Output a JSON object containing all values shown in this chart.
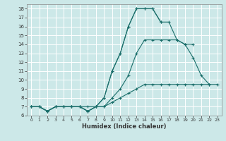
{
  "xlabel": "Humidex (Indice chaleur)",
  "bg_color": "#cce8e8",
  "grid_color": "#b0d0d0",
  "line_color": "#1a6e6a",
  "xlim": [
    -0.5,
    23.5
  ],
  "ylim": [
    6,
    18.5
  ],
  "xticks": [
    0,
    1,
    2,
    3,
    4,
    5,
    6,
    7,
    8,
    9,
    10,
    11,
    12,
    13,
    14,
    15,
    16,
    17,
    18,
    19,
    20,
    21,
    22,
    23
  ],
  "yticks": [
    6,
    7,
    8,
    9,
    10,
    11,
    12,
    13,
    14,
    15,
    16,
    17,
    18
  ],
  "series": [
    {
      "x": [
        0,
        1,
        2,
        3,
        4,
        5,
        6,
        7,
        8,
        9,
        10,
        11,
        12,
        13,
        14,
        15,
        16,
        17,
        18,
        19,
        20,
        21,
        22,
        23
      ],
      "y": [
        7,
        7,
        6.5,
        7,
        7,
        7,
        7,
        6.5,
        7,
        7,
        7.5,
        8,
        8.5,
        9,
        9.5,
        9.5,
        9.5,
        9.5,
        9.5,
        9.5,
        9.5,
        9.5,
        9.5,
        9.5
      ]
    },
    {
      "x": [
        0,
        1,
        2,
        3,
        4,
        5,
        6,
        7,
        8,
        9,
        10,
        11,
        12,
        13,
        14,
        15,
        16,
        17,
        18,
        19,
        20,
        21,
        22,
        23
      ],
      "y": [
        7,
        7,
        6.5,
        7,
        7,
        7,
        7,
        6.5,
        7,
        7,
        8,
        9,
        10.5,
        13,
        14.5,
        14.5,
        14.5,
        14.5,
        14.5,
        14,
        12.5,
        10.5,
        9.5,
        null
      ]
    },
    {
      "x": [
        0,
        1,
        2,
        3,
        4,
        5,
        6,
        7,
        8,
        9,
        10,
        11,
        12,
        13,
        14,
        15,
        16,
        17,
        18,
        19,
        20,
        21,
        22,
        23
      ],
      "y": [
        7,
        7,
        6.5,
        7,
        7,
        7,
        7,
        7,
        7,
        8,
        11,
        13,
        16,
        18,
        18,
        18,
        16.5,
        null,
        null,
        null,
        null,
        null,
        null,
        null
      ]
    },
    {
      "x": [
        0,
        1,
        2,
        3,
        4,
        5,
        6,
        7,
        8,
        9,
        10,
        11,
        12,
        13,
        14,
        15,
        16,
        17,
        18,
        19,
        20,
        21,
        22,
        23
      ],
      "y": [
        7,
        7,
        6.5,
        7,
        7,
        7,
        7,
        6.5,
        7,
        8,
        11,
        13,
        16,
        18,
        18,
        18,
        16.5,
        16.5,
        14.5,
        14,
        14,
        null,
        null,
        null
      ]
    }
  ]
}
